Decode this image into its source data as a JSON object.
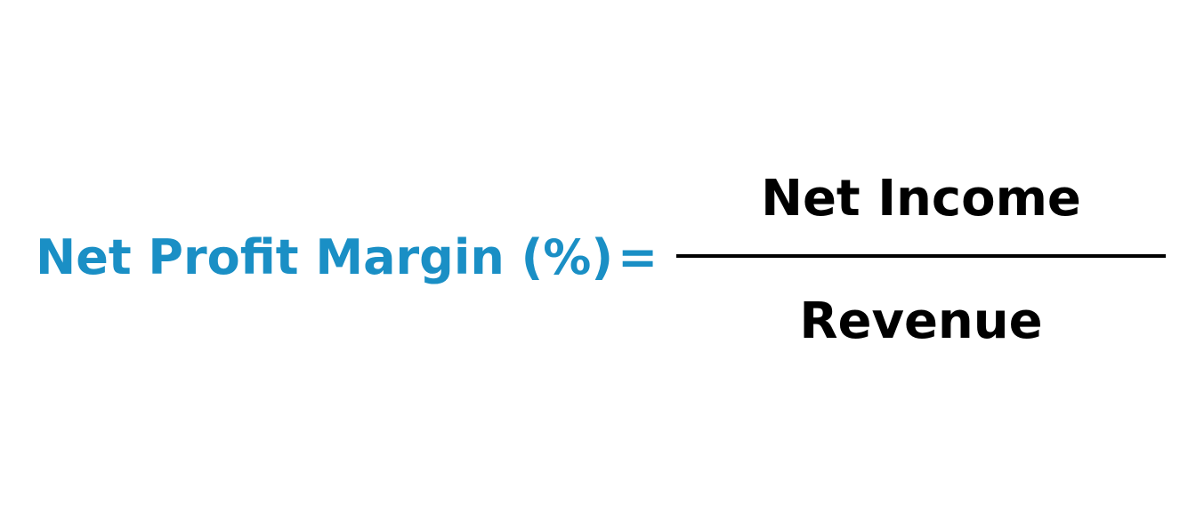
{
  "formula": {
    "lhs": "Net Profit Margin (%)",
    "operator": "=",
    "numerator": "Net Income",
    "denominator": "Revenue"
  },
  "colors": {
    "lhs": "#1a8fc5",
    "rhs": "#000000",
    "background": "#ffffff"
  }
}
